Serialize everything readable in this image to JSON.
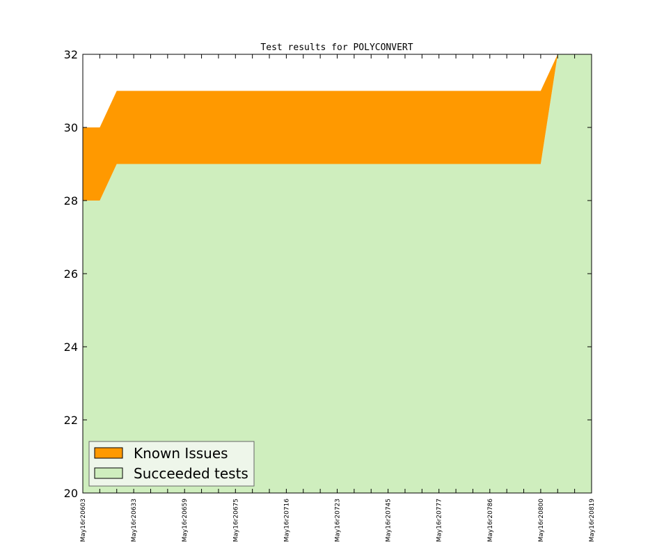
{
  "chart_data": {
    "type": "area",
    "title": "Test results for POLYCONVERT",
    "xlabel": "",
    "ylabel": "",
    "ylim": [
      20,
      32
    ],
    "yticks": [
      20,
      22,
      24,
      26,
      28,
      30,
      32
    ],
    "x": [
      0,
      1,
      2,
      3,
      4,
      5,
      6,
      7,
      8,
      9,
      10,
      11,
      12,
      13,
      14,
      15,
      16,
      17,
      18,
      19,
      20,
      21,
      22,
      23,
      24,
      25,
      26,
      27,
      28,
      29,
      30
    ],
    "xlim": [
      0,
      30
    ],
    "xticks": [
      {
        "x": 0,
        "label": "May16r20603"
      },
      {
        "x": 3,
        "label": "May16r20633"
      },
      {
        "x": 6,
        "label": "May16r20659"
      },
      {
        "x": 9,
        "label": "May16r20675"
      },
      {
        "x": 12,
        "label": "May16r20716"
      },
      {
        "x": 15,
        "label": "May16r20723"
      },
      {
        "x": 18,
        "label": "May16r20745"
      },
      {
        "x": 21,
        "label": "May16r20777"
      },
      {
        "x": 24,
        "label": "May16r20786"
      },
      {
        "x": 27,
        "label": "May16r20800"
      },
      {
        "x": 30,
        "label": "May16r20819"
      }
    ],
    "series": [
      {
        "name": "Succeeded tests",
        "color": "#cfeebe",
        "values": [
          28,
          28,
          29,
          29,
          29,
          29,
          29,
          29,
          29,
          29,
          29,
          29,
          29,
          29,
          29,
          29,
          29,
          29,
          29,
          29,
          29,
          29,
          29,
          29,
          29,
          29,
          29,
          29,
          32,
          32,
          32
        ]
      },
      {
        "name": "Known Issues",
        "color": "#ff9900",
        "values": [
          2,
          2,
          2,
          2,
          2,
          2,
          2,
          2,
          2,
          2,
          2,
          2,
          2,
          2,
          2,
          2,
          2,
          2,
          2,
          2,
          2,
          2,
          2,
          2,
          2,
          2,
          2,
          2,
          0,
          0,
          0
        ]
      }
    ],
    "legend": {
      "placement": "lower-left",
      "entries": [
        "Known Issues",
        "Succeeded tests"
      ]
    },
    "grid": false
  }
}
